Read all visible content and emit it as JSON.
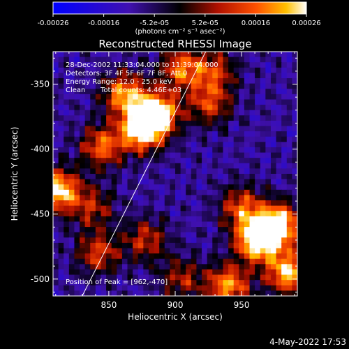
{
  "chart_data": {
    "type": "heatmap",
    "title": "Reconstructed RHESSI Image",
    "xlabel": "Heliocentric X (arcsec)",
    "ylabel": "Heliocentric Y (arcsec)",
    "xlim": [
      808,
      992
    ],
    "ylim": [
      -513,
      -325
    ],
    "x_ticks": [
      850,
      900,
      950
    ],
    "y_ticks": [
      -350,
      -400,
      -450,
      -500
    ],
    "colorbar": {
      "ticks": [
        "-0.00026",
        "-0.00016",
        "-5.2e-05",
        "5.2e-05",
        "0.00016",
        "0.00026"
      ],
      "range": [
        -0.00026,
        0.00026
      ],
      "unit_label": "(photons cm⁻² s⁻¹ asec⁻²)"
    },
    "annotations": {
      "time_range": "28-Dec-2002 11:33:04.000 to 11:39:04.000",
      "detectors": "Detectors: 3F 4F 5F 6F 7F 8F, Att 0",
      "energy": "Energy Range: 12.0 - 25.0 keV",
      "algorithm": "Clean",
      "total_counts": "Total counts: 4.46E+03",
      "peak": "Position of Peak = [962,-470]"
    },
    "limb_line": {
      "start": [
        830,
        -513
      ],
      "end": [
        923,
        -325
      ]
    },
    "emission_sources": [
      {
        "x": 875,
        "y": -385,
        "intensity": 0.95
      },
      {
        "x": 887,
        "y": -372,
        "intensity": 0.85
      },
      {
        "x": 862,
        "y": -358,
        "intensity": 0.7
      },
      {
        "x": 845,
        "y": -398,
        "intensity": 0.6
      },
      {
        "x": 905,
        "y": -338,
        "intensity": 0.6
      },
      {
        "x": 926,
        "y": -365,
        "intensity": 0.5
      },
      {
        "x": 812,
        "y": -432,
        "intensity": 0.85
      },
      {
        "x": 838,
        "y": -445,
        "intensity": 0.4
      },
      {
        "x": 842,
        "y": -480,
        "intensity": 0.5
      },
      {
        "x": 878,
        "y": -470,
        "intensity": 0.45
      },
      {
        "x": 905,
        "y": -500,
        "intensity": 0.4
      },
      {
        "x": 950,
        "y": -445,
        "intensity": 0.55
      },
      {
        "x": 962,
        "y": -470,
        "intensity": 1.0
      },
      {
        "x": 978,
        "y": -458,
        "intensity": 0.9
      },
      {
        "x": 940,
        "y": -505,
        "intensity": 0.7
      },
      {
        "x": 985,
        "y": -495,
        "intensity": 0.8
      },
      {
        "x": 930,
        "y": -340,
        "intensity": 0.45
      }
    ],
    "background_level": -0.35
  },
  "footer": {
    "timestamp": "4-May-2022 17:53"
  }
}
